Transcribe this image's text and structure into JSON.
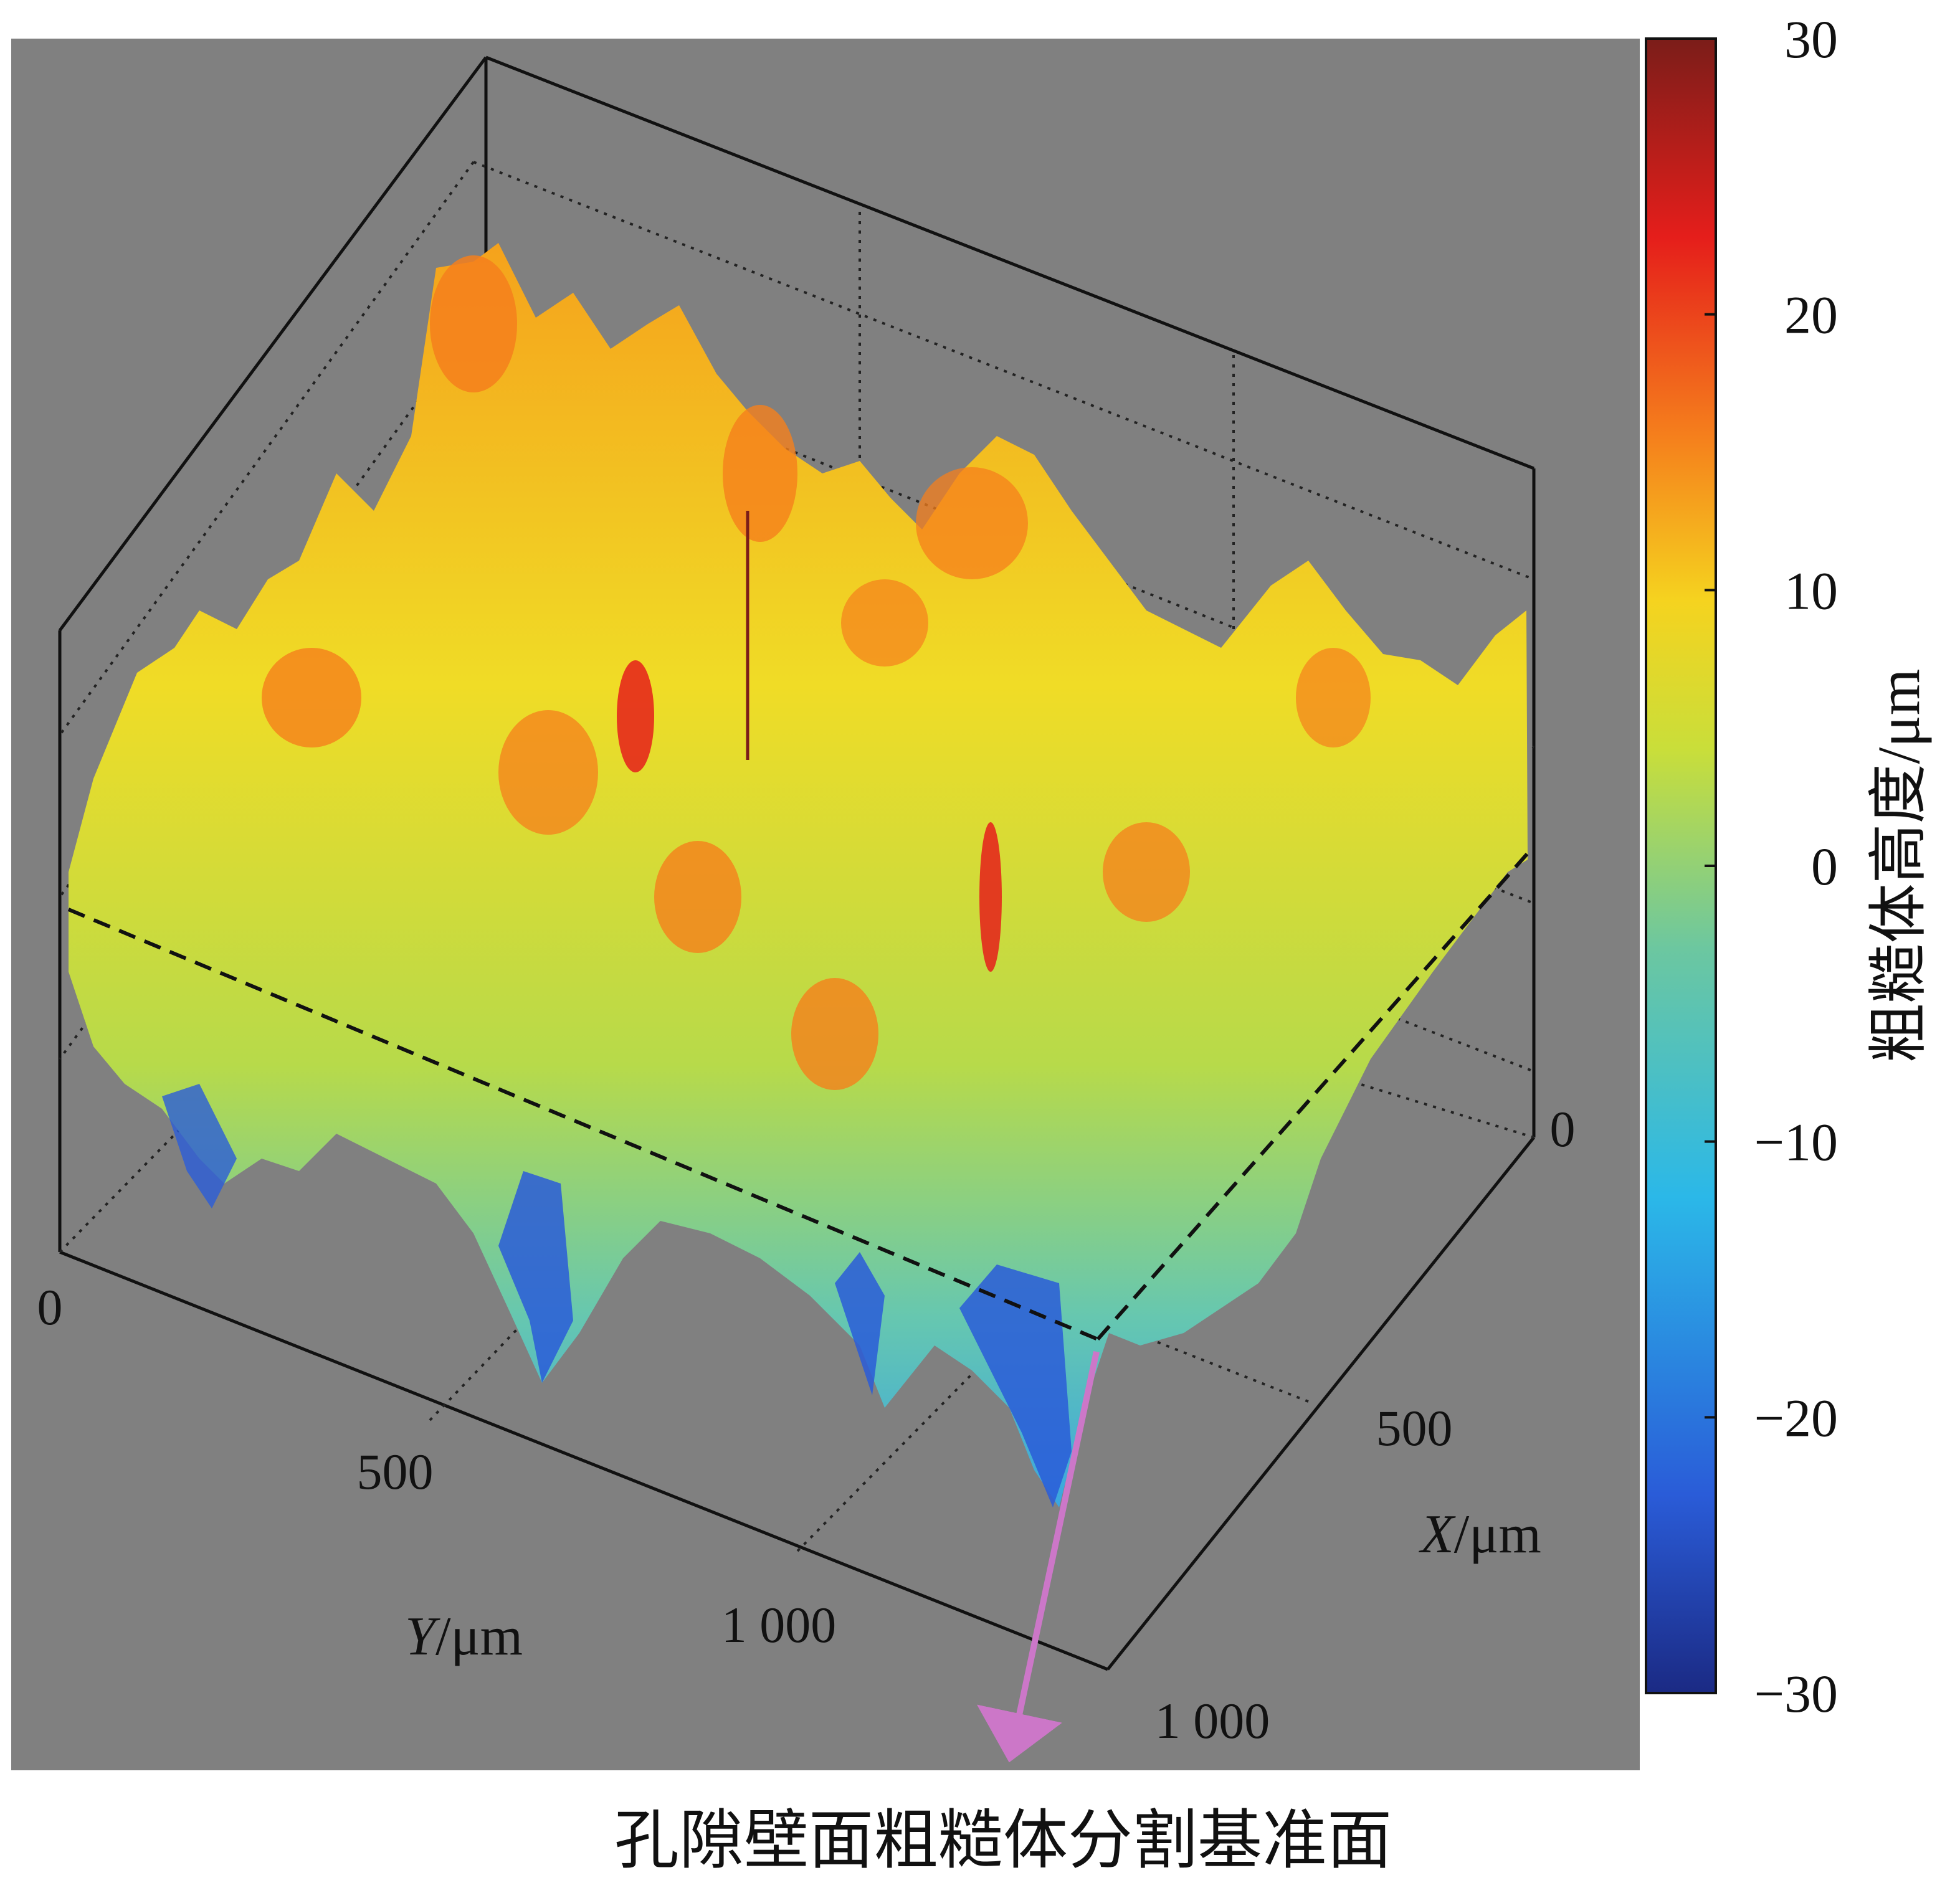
{
  "chart_data": {
    "type": "surface3d",
    "x_axis": {
      "label_var": "X",
      "label_unit": "/μm",
      "ticks": [
        "0",
        "500",
        "1 000"
      ],
      "range": [
        0,
        1000
      ]
    },
    "y_axis": {
      "label_var": "Y",
      "label_unit": "/μm",
      "ticks": [
        "0",
        "500",
        "1 000"
      ],
      "range": [
        0,
        1000
      ]
    },
    "colorbar": {
      "label": "粗糙体高度/μm",
      "ticks": [
        "30",
        "20",
        "10",
        "0",
        "−10",
        "−20",
        "−30"
      ],
      "range": [
        -30,
        30
      ],
      "colormap": [
        "#1b2a84",
        "#2a5cd8",
        "#2bb8e8",
        "#6cc7a0",
        "#c9de3a",
        "#f5d31f",
        "#f57f1c",
        "#e51e1b",
        "#7b1d19"
      ]
    },
    "surface": {
      "height_range": [
        -30,
        30
      ],
      "reference_plane_height": 0
    },
    "annotation": {
      "text": "孔隙壁面粗糙体分割基准面",
      "arrow_color": "#cc77c8"
    },
    "plot_background": "#808080",
    "grid": true
  }
}
